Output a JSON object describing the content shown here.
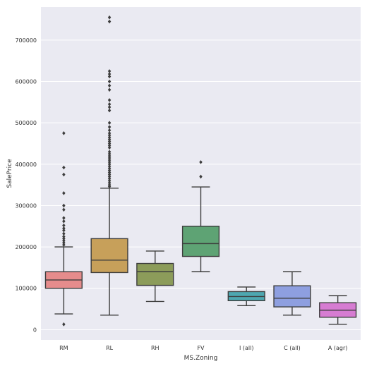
{
  "chart_data": {
    "type": "box",
    "title": "",
    "xlabel": "MS.Zoning",
    "ylabel": "SalePrice",
    "ylim": [
      -25000,
      780000
    ],
    "yticks": [
      0,
      100000,
      200000,
      300000,
      400000,
      500000,
      600000,
      700000
    ],
    "ytick_labels": [
      "0",
      "100000",
      "200000",
      "300000",
      "400000",
      "500000",
      "600000",
      "700000"
    ],
    "grid": true,
    "background": "#eaeaf2",
    "categories": [
      "RM",
      "RL",
      "RH",
      "FV",
      "I (all)",
      "C (all)",
      "A (agr)"
    ],
    "boxes": [
      {
        "category": "RM",
        "color": "#e58c8c",
        "whisker_low": 38000,
        "q1": 100000,
        "median": 120000,
        "q3": 140000,
        "whisker_high": 200000,
        "outliers": [
          12800,
          205000,
          210000,
          215000,
          220000,
          225000,
          232000,
          240000,
          245000,
          252000,
          262000,
          270000,
          290000,
          300000,
          330000,
          375000,
          392000,
          475000
        ]
      },
      {
        "category": "RL",
        "color": "#c7a05a",
        "whisker_low": 35000,
        "q1": 138000,
        "median": 168000,
        "q3": 220000,
        "whisker_high": 342000,
        "outliers": [
          346000,
          350000,
          355000,
          360000,
          365000,
          370000,
          375000,
          380000,
          385000,
          390000,
          395000,
          400000,
          405000,
          410000,
          415000,
          420000,
          425000,
          430000,
          440000,
          445000,
          450000,
          455000,
          460000,
          465000,
          470000,
          475000,
          482000,
          490000,
          500000,
          530000,
          538000,
          545000,
          555000,
          580000,
          590000,
          600000,
          612000,
          618000,
          625000,
          745000,
          755000
        ]
      },
      {
        "category": "RH",
        "color": "#8c9c5a",
        "whisker_low": 68000,
        "q1": 107000,
        "median": 140000,
        "q3": 160000,
        "whisker_high": 190000,
        "outliers": []
      },
      {
        "category": "FV",
        "color": "#5ea374",
        "whisker_low": 140000,
        "q1": 177000,
        "median": 208000,
        "q3": 250000,
        "whisker_high": 345000,
        "outliers": [
          370000,
          405000
        ]
      },
      {
        "category": "I (all)",
        "color": "#4ea7b0",
        "whisker_low": 58000,
        "q1": 70000,
        "median": 80000,
        "q3": 92000,
        "whisker_high": 103000,
        "outliers": []
      },
      {
        "category": "C (all)",
        "color": "#8e9fe0",
        "whisker_low": 35000,
        "q1": 55000,
        "median": 76000,
        "q3": 106000,
        "whisker_high": 140000,
        "outliers": []
      },
      {
        "category": "A (agr)",
        "color": "#d67cd2",
        "whisker_low": 13000,
        "q1": 30000,
        "median": 47000,
        "q3": 65000,
        "whisker_high": 82000,
        "outliers": []
      }
    ]
  }
}
